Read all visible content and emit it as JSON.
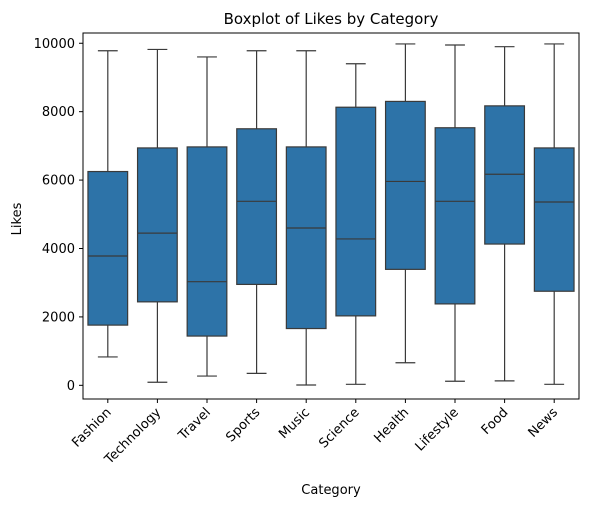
{
  "chart_data": {
    "type": "box",
    "title": "Boxplot of Likes by Category",
    "xlabel": "Category",
    "ylabel": "Likes",
    "ylim": [
      -400,
      10300
    ],
    "yticks": [
      0,
      2000,
      4000,
      6000,
      8000,
      10000
    ],
    "grid": false,
    "box_color": "#2d73a8",
    "line_color": "#3a3a3a",
    "categories": [
      "Fashion",
      "Technology",
      "Travel",
      "Sports",
      "Music",
      "Science",
      "Health",
      "Lifestyle",
      "Food",
      "News"
    ],
    "boxes": [
      {
        "category": "Fashion",
        "min": 830,
        "q1": 1760,
        "median": 3780,
        "q3": 6250,
        "max": 9780
      },
      {
        "category": "Technology",
        "min": 90,
        "q1": 2440,
        "median": 4450,
        "q3": 6940,
        "max": 9820
      },
      {
        "category": "Travel",
        "min": 270,
        "q1": 1440,
        "median": 3030,
        "q3": 6970,
        "max": 9600
      },
      {
        "category": "Sports",
        "min": 350,
        "q1": 2950,
        "median": 5380,
        "q3": 7500,
        "max": 9780
      },
      {
        "category": "Music",
        "min": 10,
        "q1": 1660,
        "median": 4600,
        "q3": 6970,
        "max": 9780
      },
      {
        "category": "Science",
        "min": 30,
        "q1": 2030,
        "median": 4280,
        "q3": 8130,
        "max": 9400
      },
      {
        "category": "Health",
        "min": 660,
        "q1": 3390,
        "median": 5960,
        "q3": 8300,
        "max": 9980
      },
      {
        "category": "Lifestyle",
        "min": 120,
        "q1": 2380,
        "median": 5380,
        "q3": 7530,
        "max": 9950
      },
      {
        "category": "Food",
        "min": 130,
        "q1": 4130,
        "median": 6170,
        "q3": 8170,
        "max": 9900
      },
      {
        "category": "News",
        "min": 30,
        "q1": 2750,
        "median": 5360,
        "q3": 6940,
        "max": 9980
      }
    ]
  }
}
